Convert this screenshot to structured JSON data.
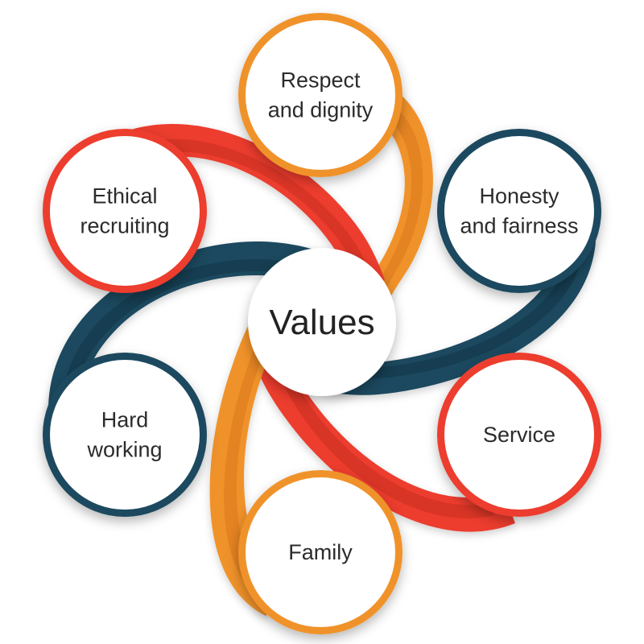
{
  "diagram": {
    "center": {
      "label": "Values"
    },
    "colors": {
      "orange": "#f0922c",
      "orange_dark": "#d9761d",
      "teal": "#1c4a5e",
      "teal_dark": "#12374a",
      "red": "#ec3e2e",
      "red_dark": "#c92c20"
    },
    "nodes": [
      {
        "id": "respect",
        "lines": [
          "Respect",
          "and dignity"
        ],
        "ring_color": "orange"
      },
      {
        "id": "honesty",
        "lines": [
          "Honesty",
          "and fairness"
        ],
        "ring_color": "teal"
      },
      {
        "id": "service",
        "lines": [
          "Service"
        ],
        "ring_color": "red"
      },
      {
        "id": "family",
        "lines": [
          "Family"
        ],
        "ring_color": "orange"
      },
      {
        "id": "hard-working",
        "lines": [
          "Hard",
          "working"
        ],
        "ring_color": "teal"
      },
      {
        "id": "ethical",
        "lines": [
          "Ethical",
          "recruiting"
        ],
        "ring_color": "red"
      }
    ]
  }
}
